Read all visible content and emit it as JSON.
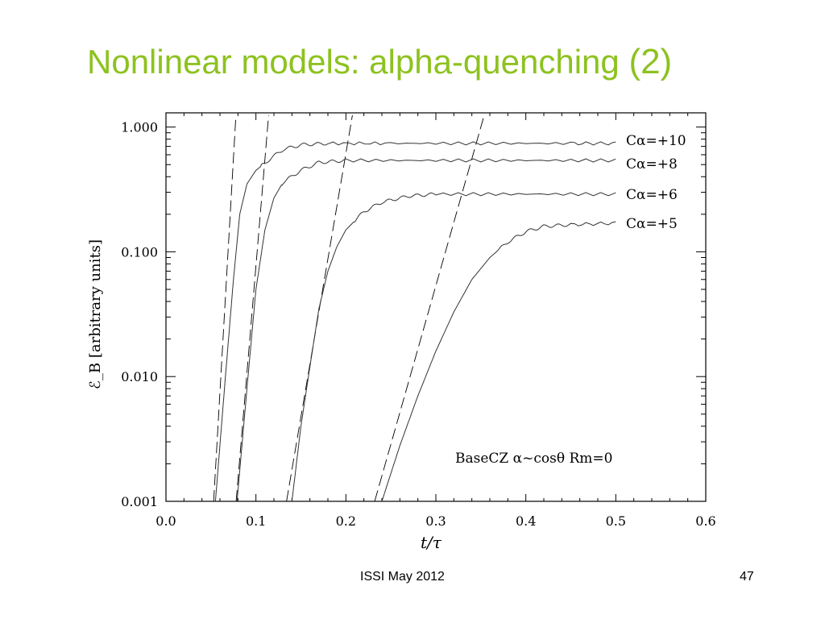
{
  "slide": {
    "title": "Nonlinear models: alpha-quenching",
    "title_number": "(2)",
    "footer_left": "ISSI May 2012",
    "page_number": "47"
  },
  "chart_data": {
    "type": "line",
    "xlabel": "t/τ",
    "ylabel": "ℰ_B [arbitrary units]",
    "yscale": "log",
    "xlim": [
      0.0,
      0.6
    ],
    "ylim": [
      0.001,
      1.3
    ],
    "x_ticks": [
      "0.0",
      "0.1",
      "0.2",
      "0.3",
      "0.4",
      "0.5",
      "0.6"
    ],
    "y_ticks": [
      "0.001",
      "0.010",
      "0.100",
      "1.000"
    ],
    "annotation": "BaseCZ α~cosθ Rm=0",
    "series": [
      {
        "name": "Cα=+10",
        "x": [
          0.055,
          0.065,
          0.075,
          0.082,
          0.09,
          0.1,
          0.115,
          0.13,
          0.15,
          0.18,
          0.25,
          0.35,
          0.45,
          0.5
        ],
        "y": [
          0.001,
          0.008,
          0.06,
          0.2,
          0.35,
          0.45,
          0.55,
          0.66,
          0.72,
          0.74,
          0.74,
          0.74,
          0.74,
          0.74
        ],
        "fit_x": [
          0.053,
          0.077
        ],
        "fit_y": [
          0.001,
          1.0
        ]
      },
      {
        "name": "Cα=+8",
        "x": [
          0.079,
          0.09,
          0.1,
          0.11,
          0.12,
          0.13,
          0.15,
          0.17,
          0.2,
          0.3,
          0.4,
          0.5
        ],
        "y": [
          0.001,
          0.008,
          0.05,
          0.15,
          0.27,
          0.36,
          0.45,
          0.52,
          0.54,
          0.54,
          0.54,
          0.54
        ],
        "fit_x": [
          0.078,
          0.113
        ],
        "fit_y": [
          0.001,
          1.0
        ]
      },
      {
        "name": "Cα=+6",
        "x": [
          0.14,
          0.15,
          0.16,
          0.17,
          0.18,
          0.19,
          0.2,
          0.22,
          0.24,
          0.27,
          0.3,
          0.4,
          0.5
        ],
        "y": [
          0.001,
          0.004,
          0.012,
          0.035,
          0.07,
          0.11,
          0.15,
          0.21,
          0.25,
          0.28,
          0.29,
          0.29,
          0.29
        ],
        "fit_x": [
          0.134,
          0.205
        ],
        "fit_y": [
          0.001,
          1.0
        ]
      },
      {
        "name": "Cα=+5",
        "x": [
          0.24,
          0.26,
          0.28,
          0.3,
          0.32,
          0.34,
          0.36,
          0.38,
          0.4,
          0.42,
          0.45,
          0.5
        ],
        "y": [
          0.001,
          0.0028,
          0.007,
          0.016,
          0.033,
          0.06,
          0.09,
          0.12,
          0.145,
          0.16,
          0.165,
          0.17
        ],
        "fit_x": [
          0.232,
          0.35
        ],
        "fit_y": [
          0.001,
          1.0
        ]
      }
    ]
  }
}
